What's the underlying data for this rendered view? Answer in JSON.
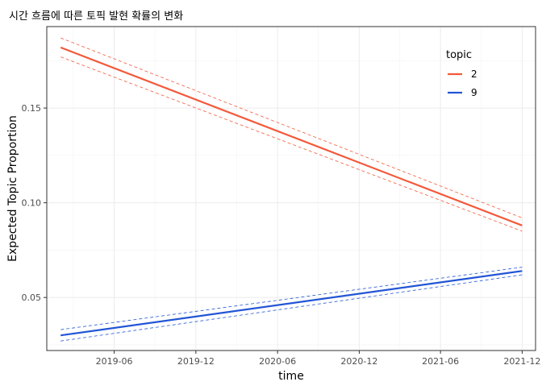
{
  "chart_data": {
    "type": "line",
    "title": "시간 흐름에 따른 토픽 발현 확률의 변화",
    "xlabel": "time",
    "ylabel": "Expected Topic Proportion",
    "x_ticks": [
      "2019-06",
      "2019-12",
      "2020-06",
      "2020-12",
      "2021-06",
      "2021-12"
    ],
    "x_range": [
      "2019-01-01",
      "2021-12-31"
    ],
    "y_ticks": [
      0.05,
      0.1,
      0.15
    ],
    "y_tick_labels": [
      "0.05",
      "0.10",
      "0.15"
    ],
    "ylim": [
      0.022,
      0.193
    ],
    "grid": true,
    "legend": {
      "title": "topic",
      "position": "top-right"
    },
    "series": [
      {
        "name": "2",
        "color": "#f4593b",
        "x": [
          "2019-02-01",
          "2021-12-01"
        ],
        "values": [
          0.182,
          0.088
        ],
        "ci_upper": [
          0.187,
          0.092
        ],
        "ci_lower": [
          0.177,
          0.085
        ]
      },
      {
        "name": "9",
        "color": "#2155d6",
        "x": [
          "2019-02-01",
          "2021-12-01"
        ],
        "values": [
          0.03,
          0.064
        ],
        "ci_upper": [
          0.033,
          0.066
        ],
        "ci_lower": [
          0.027,
          0.062
        ]
      }
    ]
  }
}
